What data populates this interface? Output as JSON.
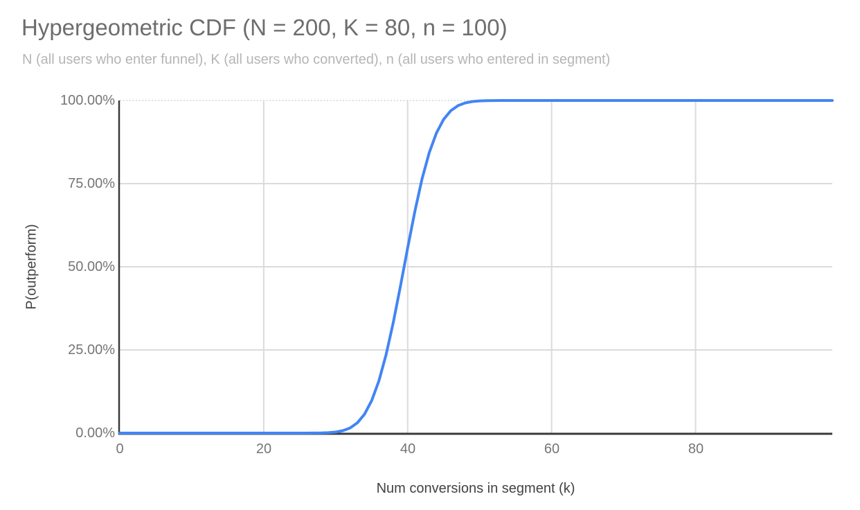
{
  "style": {
    "background": "#ffffff",
    "title_color": "#6d6d6d",
    "subtitle_color": "#b5b5b5",
    "tick_label_color": "#757575",
    "axis_title_color": "#424242",
    "gridline_color": "#dbdbdb",
    "top_gridline_color": "#d2d2d2",
    "top_gridline_style": "dotted",
    "axis_line_color": "#3a3a3a",
    "series_color": "#4285f4"
  },
  "chart_data": {
    "type": "line",
    "title": "Hypergeometric CDF (N = 200, K = 80, n = 100)",
    "subtitle": "N (all users who enter funnel), K (all users who converted), n (all users who entered in segment)",
    "xlabel": "Num conversions in segment (k)",
    "ylabel": "P(outperform)",
    "xlim": [
      0,
      99
    ],
    "ylim": [
      0,
      1
    ],
    "grid": true,
    "legend_position": "none",
    "x_ticks": {
      "values": [
        0,
        20,
        40,
        60,
        80
      ],
      "labels": [
        "0",
        "20",
        "40",
        "60",
        "80"
      ]
    },
    "y_ticks": {
      "values": [
        0,
        0.25,
        0.5,
        0.75,
        1
      ],
      "labels": [
        "0.00%",
        "25.00%",
        "50.00%",
        "75.00%",
        "100.00%"
      ]
    },
    "series": [
      {
        "name": "P(outperform)",
        "color": "#4285f4",
        "x": [
          0,
          1,
          2,
          3,
          4,
          5,
          6,
          7,
          8,
          9,
          10,
          11,
          12,
          13,
          14,
          15,
          16,
          17,
          18,
          19,
          20,
          21,
          22,
          23,
          24,
          25,
          26,
          27,
          28,
          29,
          30,
          31,
          32,
          33,
          34,
          35,
          36,
          37,
          38,
          39,
          40,
          41,
          42,
          43,
          44,
          45,
          46,
          47,
          48,
          49,
          50,
          51,
          52,
          53,
          54,
          55,
          56,
          57,
          58,
          59,
          60,
          61,
          62,
          63,
          64,
          65,
          66,
          67,
          68,
          69,
          70,
          71,
          72,
          73,
          74,
          75,
          76,
          77,
          78,
          79,
          80,
          81,
          82,
          83,
          84,
          85,
          86,
          87,
          88,
          89,
          90,
          91,
          92,
          93,
          94,
          95,
          96,
          97,
          98,
          99
        ],
        "y": [
          0,
          0,
          0,
          0,
          0,
          0,
          0,
          0,
          0,
          0,
          0,
          0,
          0,
          0,
          0,
          0,
          0,
          0,
          0,
          0,
          0,
          0,
          0,
          0,
          0,
          0,
          0.0001,
          0.0002,
          0.0005,
          0.0013,
          0.0031,
          0.0072,
          0.0154,
          0.0307,
          0.0567,
          0.0977,
          0.1568,
          0.2358,
          0.3329,
          0.4428,
          0.5572,
          0.6671,
          0.7642,
          0.8432,
          0.9023,
          0.9433,
          0.9693,
          0.9846,
          0.9928,
          0.9969,
          0.9987,
          0.9995,
          0.9998,
          0.9999,
          1,
          1,
          1,
          1,
          1,
          1,
          1,
          1,
          1,
          1,
          1,
          1,
          1,
          1,
          1,
          1,
          1,
          1,
          1,
          1,
          1,
          1,
          1,
          1,
          1,
          1,
          1,
          1,
          1,
          1,
          1,
          1,
          1,
          1,
          1,
          1,
          1,
          1,
          1,
          1,
          1,
          1,
          1,
          1,
          1,
          1
        ]
      }
    ]
  }
}
